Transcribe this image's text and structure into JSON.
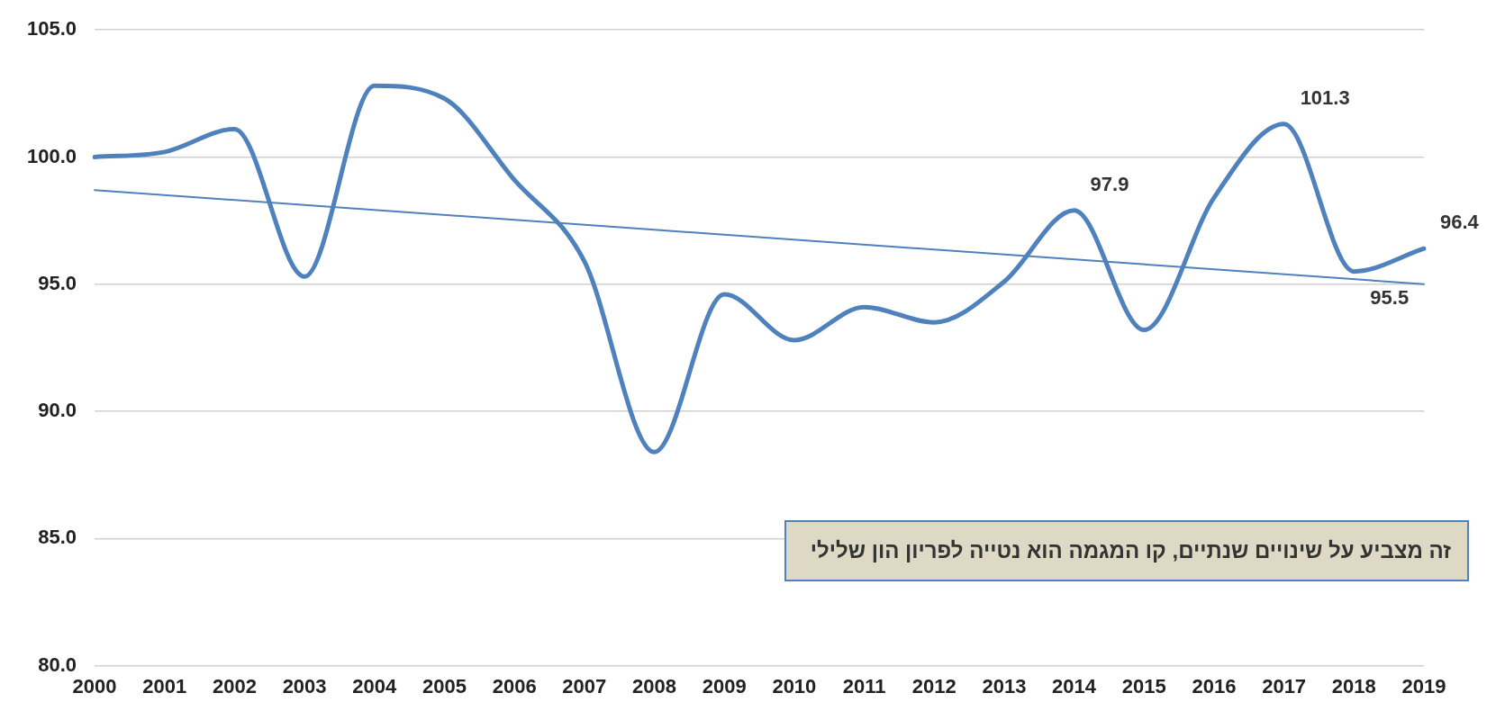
{
  "chart_data": {
    "type": "line",
    "categories": [
      "2000",
      "2001",
      "2002",
      "2003",
      "2004",
      "2005",
      "2006",
      "2007",
      "2008",
      "2009",
      "2010",
      "2011",
      "2012",
      "2013",
      "2014",
      "2015",
      "2016",
      "2017",
      "2018",
      "2019"
    ],
    "series": [
      {
        "color": "#4f81bd",
        "values": [
          100.0,
          100.2,
          101.1,
          95.3,
          102.8,
          102.3,
          99.1,
          95.9,
          88.4,
          94.6,
          92.8,
          94.1,
          93.5,
          95.1,
          97.9,
          93.2,
          98.4,
          101.3,
          95.5,
          96.4
        ],
        "value_labels": [
          null,
          null,
          null,
          null,
          null,
          null,
          null,
          null,
          null,
          null,
          null,
          null,
          null,
          null,
          "97.9",
          null,
          null,
          "101.3",
          "95.5",
          "96.4"
        ]
      },
      {
        "color": "#4f81bd",
        "values": [
          98.7,
          null,
          null,
          null,
          null,
          null,
          null,
          null,
          null,
          null,
          null,
          null,
          null,
          null,
          null,
          null,
          null,
          null,
          null,
          95.0
        ]
      }
    ],
    "ylim": [
      80,
      105
    ],
    "yticks": [
      {
        "value": 80,
        "label": "80.0"
      },
      {
        "value": 85,
        "label": "85.0"
      },
      {
        "value": 90,
        "label": "90.0"
      },
      {
        "value": 95,
        "label": "95.0"
      },
      {
        "value": 100,
        "label": "100.0"
      },
      {
        "value": 105,
        "label": "105.0"
      }
    ],
    "grid": "y",
    "legend": false,
    "marker": "none",
    "line_style": "solid",
    "annotations": [
      "זה מצביע על שינויים שנתיים, קו המגמה הוא נטייה לפריון הון שלילי"
    ]
  }
}
